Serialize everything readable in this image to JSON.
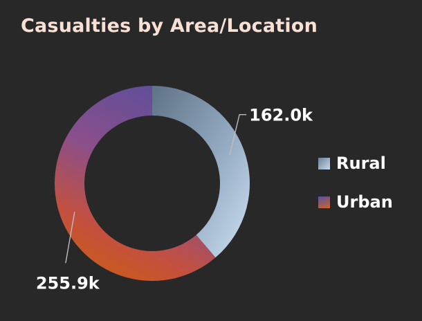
{
  "chart_data": {
    "type": "pie",
    "title": "Casualties by Area/Location",
    "categories": [
      "Rural",
      "Urban"
    ],
    "values": [
      162.0,
      255.9
    ],
    "data_labels": [
      "162.0k",
      "255.9k"
    ],
    "legend_placement": "right",
    "donut": true,
    "colors": {
      "Rural": "#9fb6cf",
      "Urban": "#8a5a8a"
    }
  }
}
